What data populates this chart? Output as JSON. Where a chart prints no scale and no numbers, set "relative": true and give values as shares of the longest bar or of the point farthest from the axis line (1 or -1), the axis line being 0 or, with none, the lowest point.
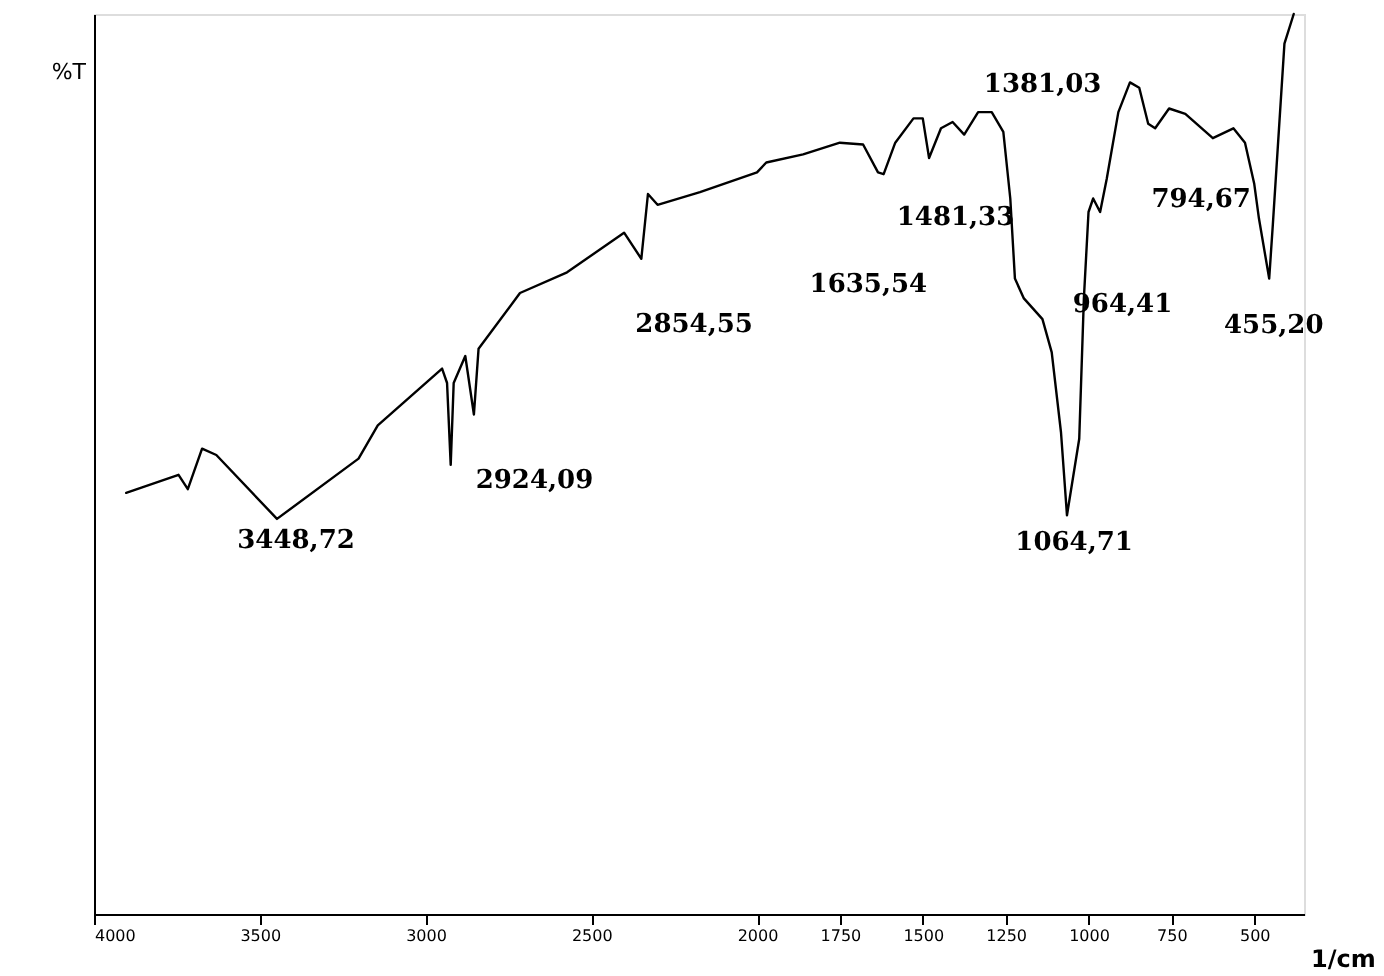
{
  "chart_data": {
    "type": "line",
    "relative": true,
    "xlabel": "1/cm",
    "ylabel": "%T",
    "grid": false,
    "tick_labels": "x",
    "xlim": [
      4000,
      350
    ],
    "xticks": [
      4000,
      3500,
      3000,
      2500,
      2000,
      1750,
      1500,
      1250,
      1000,
      750,
      500
    ],
    "x": [
      3903,
      3745,
      3717,
      3674,
      3631,
      3448,
      3202,
      3144,
      2950,
      2935,
      2924,
      2915,
      2880,
      2854,
      2840,
      2715,
      2573,
      2401,
      2349,
      2329,
      2300,
      2172,
      2000,
      1972,
      1861,
      1750,
      1680,
      1635,
      1618,
      1583,
      1528,
      1500,
      1481,
      1445,
      1410,
      1375,
      1333,
      1292,
      1257,
      1236,
      1222,
      1195,
      1139,
      1111,
      1083,
      1065,
      1028,
      1014,
      1000,
      986,
      965,
      945,
      910,
      875,
      847,
      820,
      799,
      757,
      708,
      625,
      563,
      528,
      500,
      486,
      455,
      444,
      409,
      381
    ],
    "series": [
      {
        "color": "#000000",
        "values": [
          0.468,
          0.488,
          0.472,
          0.517,
          0.51,
          0.439,
          0.506,
          0.543,
          0.606,
          0.59,
          0.499,
          0.59,
          0.62,
          0.555,
          0.628,
          0.69,
          0.713,
          0.757,
          0.728,
          0.8,
          0.788,
          0.802,
          0.824,
          0.835,
          0.844,
          0.857,
          0.855,
          0.824,
          0.822,
          0.857,
          0.884,
          0.884,
          0.84,
          0.873,
          0.88,
          0.866,
          0.891,
          0.891,
          0.869,
          0.795,
          0.706,
          0.684,
          0.661,
          0.624,
          0.535,
          0.443,
          0.528,
          0.684,
          0.78,
          0.795,
          0.78,
          0.817,
          0.891,
          0.924,
          0.918,
          0.878,
          0.873,
          0.895,
          0.889,
          0.862,
          0.873,
          0.857,
          0.811,
          0.773,
          0.706,
          0.766,
          0.967,
          1.0
        ]
      }
    ],
    "annotations": [
      "3448,72",
      "2924,09",
      "2854,55",
      "1635,54",
      "1481,33",
      "1381,03",
      "964,41",
      "1064,71",
      "794,67",
      "455,20"
    ]
  }
}
